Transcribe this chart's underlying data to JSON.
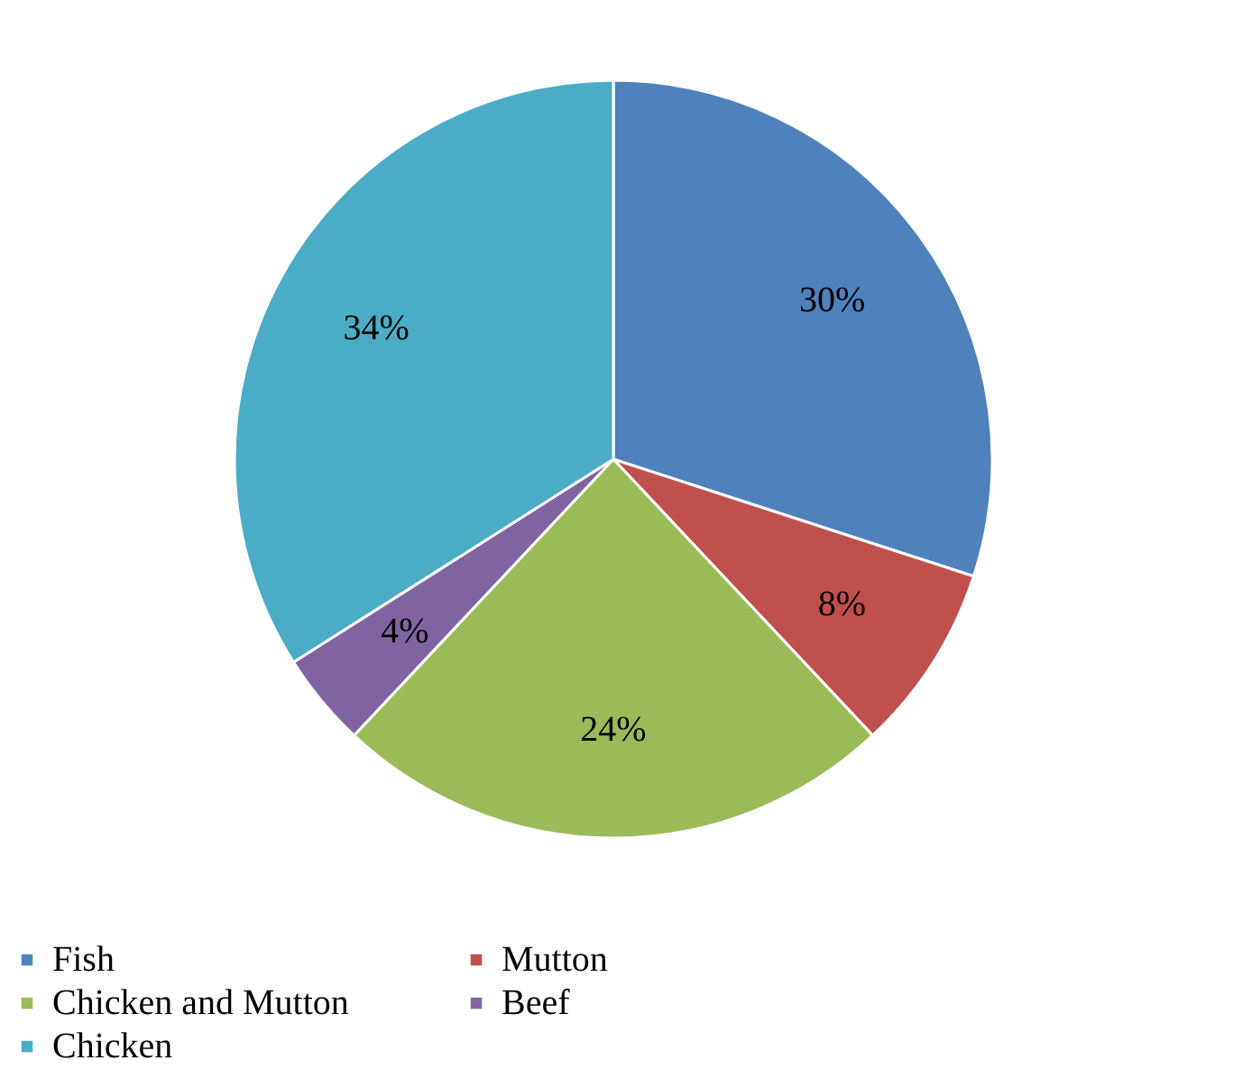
{
  "chart_data": {
    "type": "pie",
    "categories": [
      "Fish",
      "Mutton",
      "Chicken and Mutton",
      "Beef",
      "Chicken"
    ],
    "values": [
      30,
      8,
      24,
      4,
      34
    ],
    "colors": [
      "#4f81bd",
      "#c0504d",
      "#9bbb59",
      "#8064a2",
      "#4bacc6"
    ],
    "value_labels": [
      "30%",
      "8%",
      "24%",
      "4%",
      "34%"
    ],
    "legend": "bottom"
  }
}
